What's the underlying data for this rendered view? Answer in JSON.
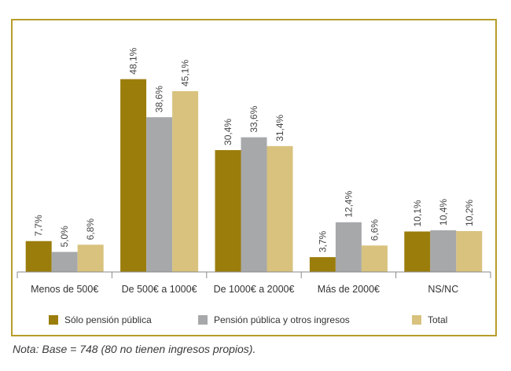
{
  "chart_data": {
    "type": "bar",
    "categories": [
      "Menos de 500€",
      "De 500€ a 1000€",
      "De 1000€ a 2000€",
      "Más de 2000€",
      "NS/NC"
    ],
    "series": [
      {
        "name": "Sólo pensión pública",
        "values": [
          7.7,
          48.1,
          30.4,
          3.7,
          10.1
        ],
        "labels": [
          "7,7%",
          "48,1%",
          "30,4%",
          "3,7%",
          "10,1%"
        ]
      },
      {
        "name": "Pensión pública y otros ingresos",
        "values": [
          5.0,
          38.6,
          33.6,
          12.4,
          10.4
        ],
        "labels": [
          "5,0%",
          "38,6%",
          "33,6%",
          "12,4%",
          "10,4%"
        ]
      },
      {
        "name": "Total",
        "values": [
          6.8,
          45.1,
          31.4,
          6.6,
          10.2
        ],
        "labels": [
          "6,8%",
          "45,1%",
          "31,4%",
          "6,6%",
          "10,2%"
        ]
      }
    ],
    "colors": [
      "#9b7d0c",
      "#a7a8aa",
      "#d8c27e"
    ],
    "ylim": [
      0,
      50
    ],
    "grid": false,
    "legend_position": "bottom",
    "value_labels": "rotated-vertical"
  },
  "footnote": "Nota: Base = 748 (80 no tienen ingresos propios)."
}
